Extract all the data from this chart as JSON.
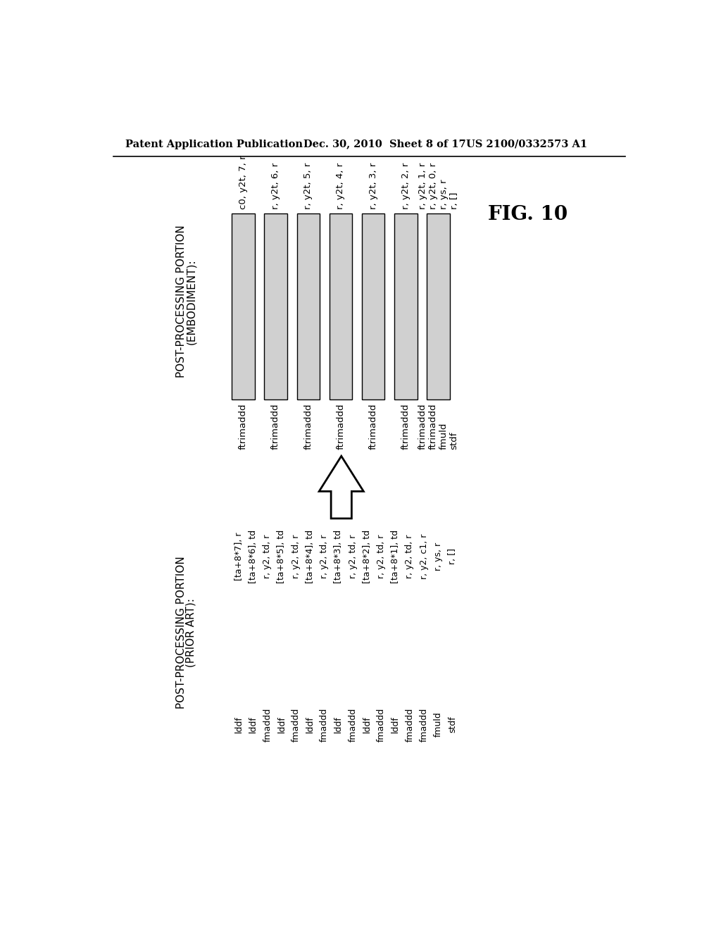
{
  "bg_color": "#ffffff",
  "header_left": "Patent Application Publication",
  "header_mid": "Dec. 30, 2010  Sheet 8 of 17",
  "header_right": "US 2100/0332573 A1",
  "fig_label": "FIG. 10",
  "top_section_title_line1": "POST-PROCESSING PORTION",
  "top_section_title_line2": "(EMBODIMENT):",
  "top_bars": [
    {
      "op": "ftrimaddd",
      "args": "c0, y2t, 7, r"
    },
    {
      "op": "ftrimaddd",
      "args": "r, y2t, 6, r"
    },
    {
      "op": "ftrimaddd",
      "args": "r, y2t, 5, r"
    },
    {
      "op": "ftrimaddd",
      "args": "r, y2t, 4, r"
    },
    {
      "op": "ftrimaddd",
      "args": "r, y2t, 3, r"
    },
    {
      "op": "ftrimaddd",
      "args": "r, y2t, 2, r"
    },
    {
      "op": "ftrimaddd\nftrimaddd\nfmuld\nstdf",
      "args": "r, y2t, 1, r\nr, y2t, 0, r\nr, ys, r\nr, []"
    }
  ],
  "bottom_section_title_line1": "POST-PROCESSING PORTION",
  "bottom_section_title_line2": "(PRIOR ART):",
  "bottom_cols": [
    {
      "op": "lddf",
      "args": "[ta+8*7], r"
    },
    {
      "op": "lddf",
      "args": "[ta+8*6], td"
    },
    {
      "op": "fmaddd",
      "args": "r, y2, td, r"
    },
    {
      "op": "lddf",
      "args": "[ta+8*5], td"
    },
    {
      "op": "fmaddd",
      "args": "r, y2, td, r"
    },
    {
      "op": "lddf",
      "args": "[ta+8*4], td"
    },
    {
      "op": "fmaddd",
      "args": "r, y2, td, r"
    },
    {
      "op": "lddf",
      "args": "[ta+8*3], td"
    },
    {
      "op": "fmaddd",
      "args": "r, y2, td, r"
    },
    {
      "op": "lddf",
      "args": "[ta+8*2], td"
    },
    {
      "op": "fmaddd",
      "args": "r, y2, td, r"
    },
    {
      "op": "lddf",
      "args": "[ta+8*1], td"
    },
    {
      "op": "fmaddd",
      "args": "r, y2, td, r"
    },
    {
      "op": "fmaddd",
      "args": "r, y2, c1, r"
    },
    {
      "op": "fmuld",
      "args": "r, ys, r"
    },
    {
      "op": "stdf",
      "args": "r, []"
    }
  ]
}
